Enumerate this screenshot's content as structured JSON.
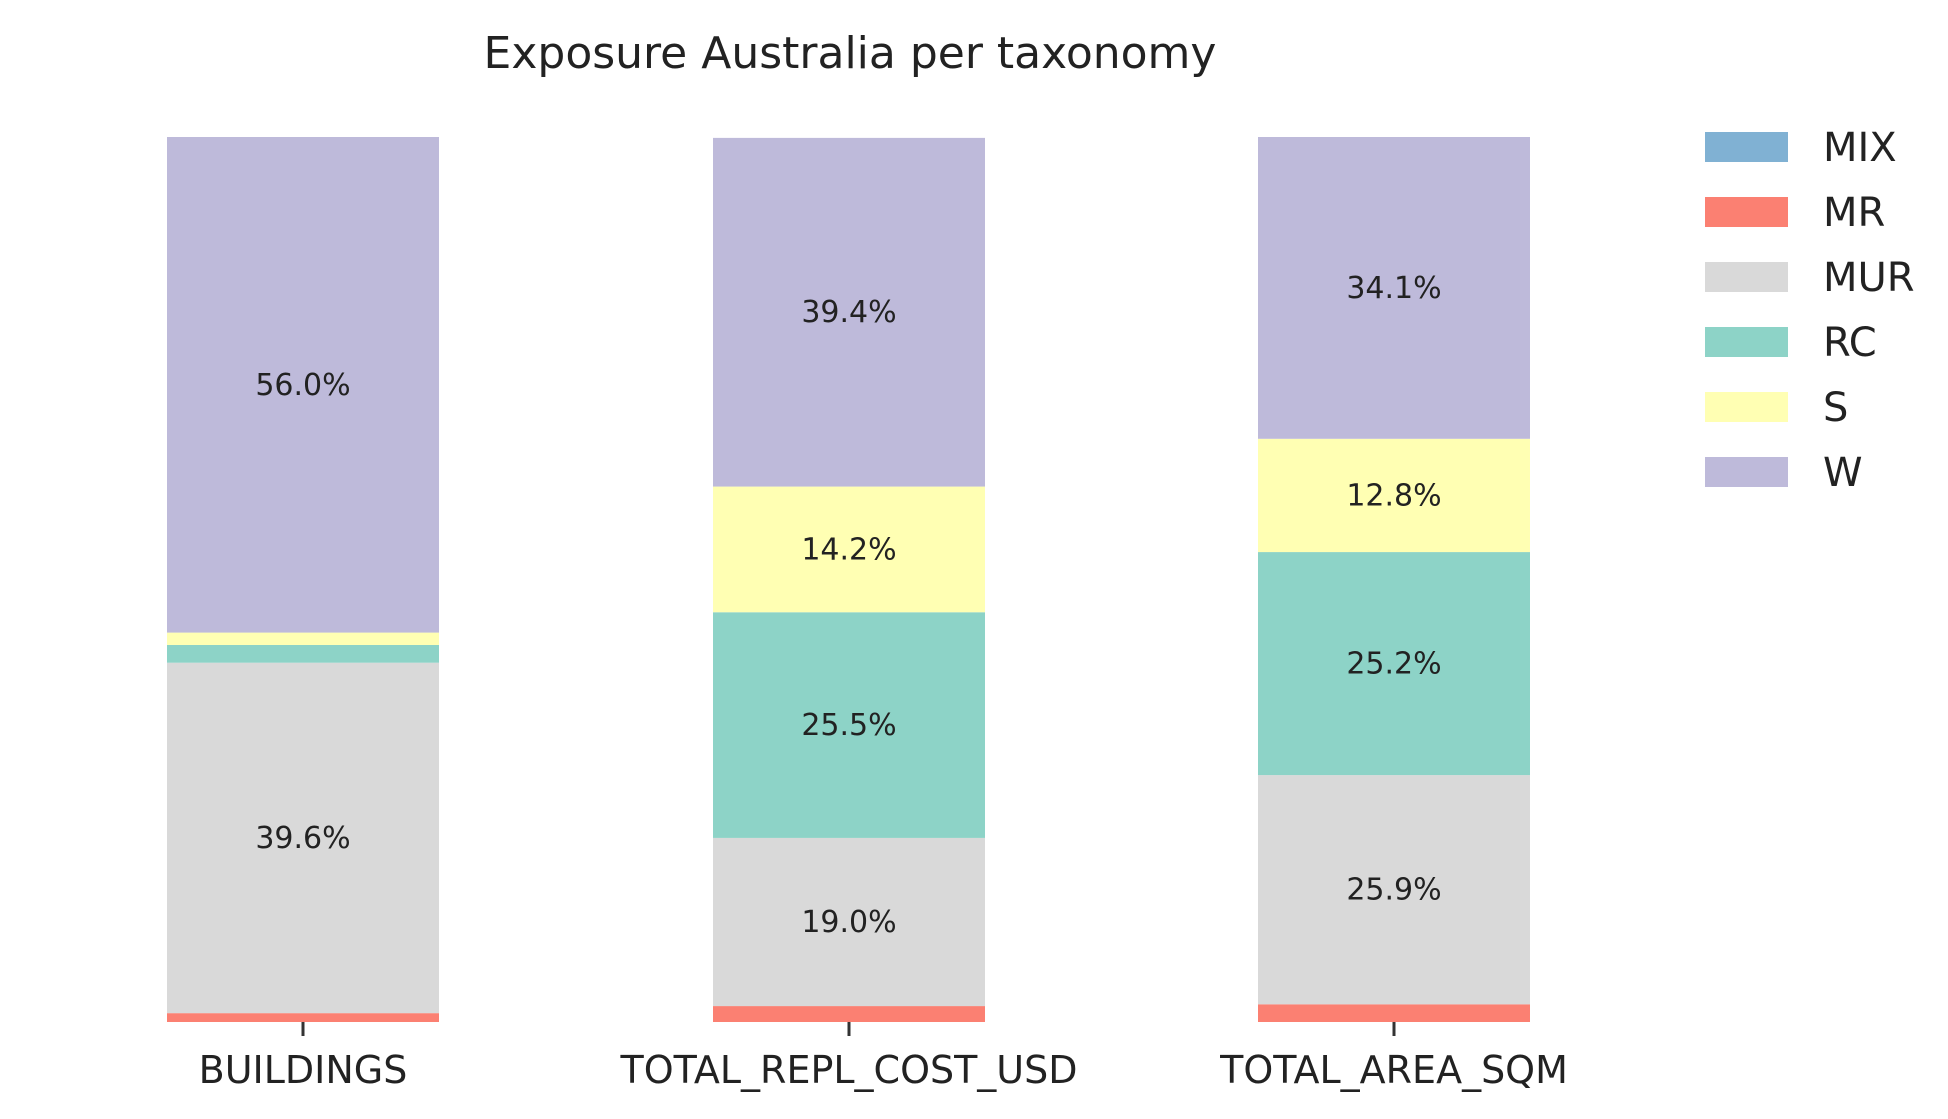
{
  "chart_data": {
    "type": "bar",
    "stacked": true,
    "normalized": true,
    "title": "Exposure Australia per taxonomy",
    "xlabel": "",
    "ylabel": "",
    "ylim": [
      0,
      100
    ],
    "grid": false,
    "legend_position": "top-right",
    "categories": [
      "BUILDINGS",
      "TOTAL_REPL_COST_USD",
      "TOTAL_AREA_SQM"
    ],
    "series": [
      {
        "name": "MIX",
        "color": "#80b1d3",
        "values": [
          0.0,
          0.0,
          0.0
        ],
        "labels": [
          "",
          "",
          ""
        ]
      },
      {
        "name": "MR",
        "color": "#fb8072",
        "values": [
          1.0,
          1.8,
          2.0
        ],
        "labels": [
          "",
          "",
          ""
        ]
      },
      {
        "name": "MUR",
        "color": "#d9d9d9",
        "values": [
          39.6,
          19.0,
          25.9
        ],
        "labels": [
          "39.6%",
          "19.0%",
          "25.9%"
        ]
      },
      {
        "name": "RC",
        "color": "#8dd3c7",
        "values": [
          2.0,
          25.5,
          25.2
        ],
        "labels": [
          "",
          "25.5%",
          "25.2%"
        ]
      },
      {
        "name": "S",
        "color": "#ffffb3",
        "values": [
          1.4,
          14.2,
          12.8
        ],
        "labels": [
          "",
          "14.2%",
          "12.8%"
        ]
      },
      {
        "name": "W",
        "color": "#bebada",
        "values": [
          56.0,
          39.4,
          34.1
        ],
        "labels": [
          "56.0%",
          "39.4%",
          "34.1%"
        ]
      }
    ]
  }
}
